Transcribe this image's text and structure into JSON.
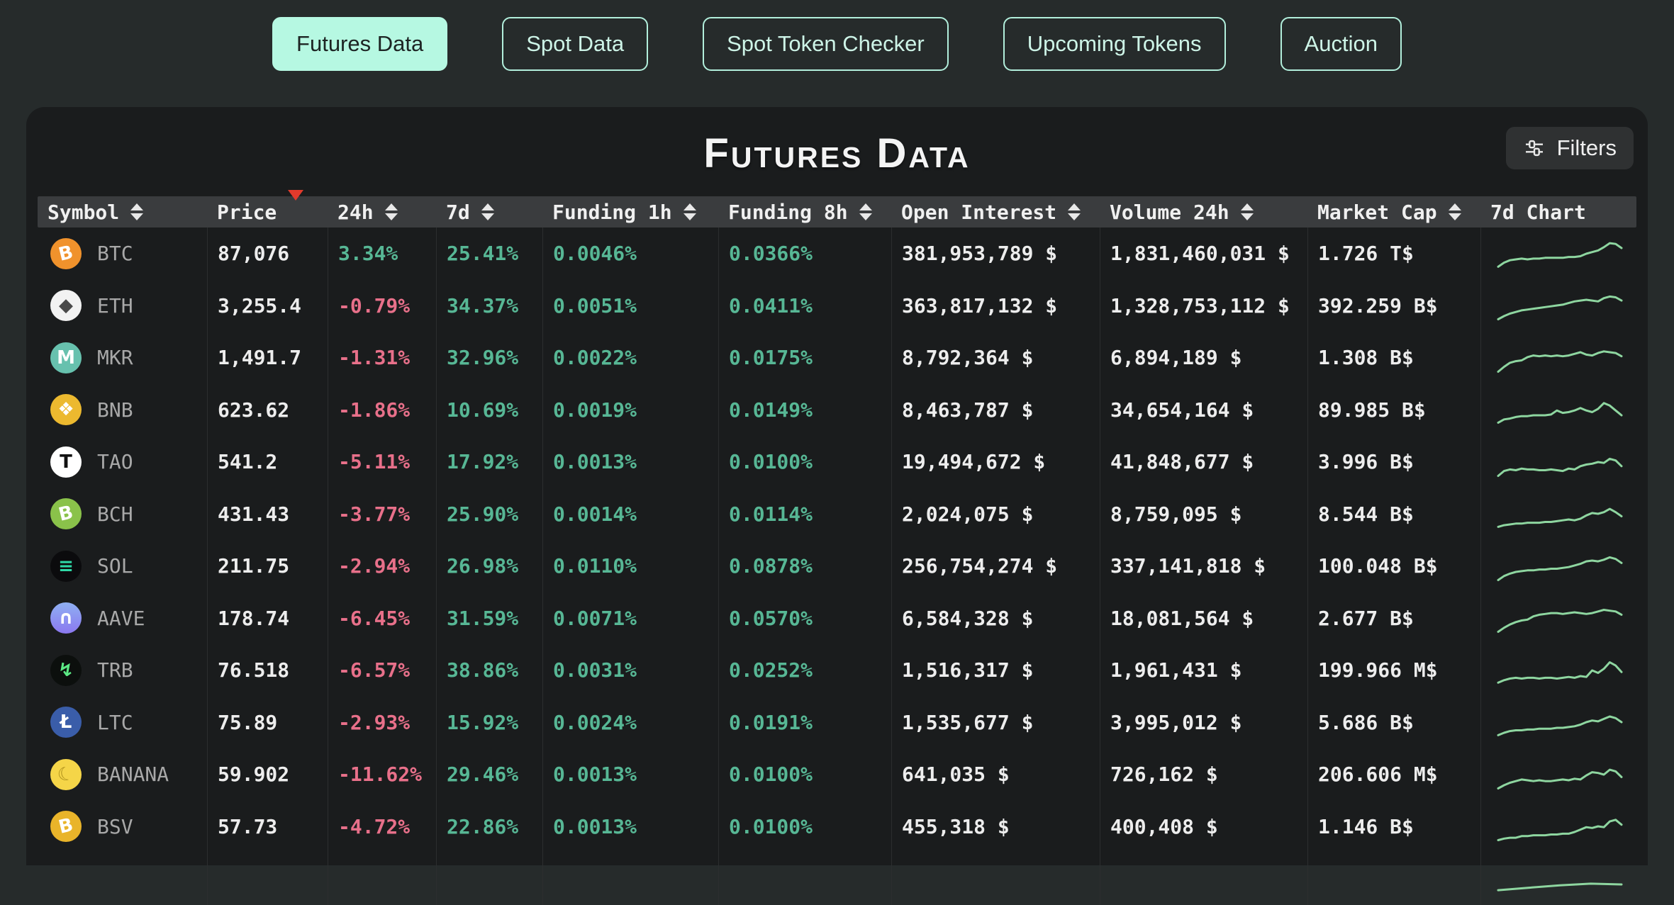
{
  "tabs": [
    {
      "label": "Futures Data",
      "active": true
    },
    {
      "label": "Spot Data",
      "active": false
    },
    {
      "label": "Spot Token Checker",
      "active": false
    },
    {
      "label": "Upcoming Tokens",
      "active": false
    },
    {
      "label": "Auction",
      "active": false
    }
  ],
  "panel": {
    "title": "Futures Data",
    "filters_label": "Filters"
  },
  "colors": {
    "positive": "#57b795",
    "negative": "#e8708a",
    "sparkline": "#8ed6a0",
    "sort_active": "#e23a2c",
    "accent_mint": "#b6f8e2"
  },
  "table": {
    "columns": [
      {
        "label": "Symbol",
        "sort": "both"
      },
      {
        "label": "Price",
        "sort": "desc"
      },
      {
        "label": "24h",
        "sort": "both"
      },
      {
        "label": "7d",
        "sort": "both"
      },
      {
        "label": "Funding 1h",
        "sort": "both"
      },
      {
        "label": "Funding 8h",
        "sort": "both"
      },
      {
        "label": "Open Interest",
        "sort": "both"
      },
      {
        "label": "Volume 24h",
        "sort": "both"
      },
      {
        "label": "Market Cap",
        "sort": "both"
      },
      {
        "label": "7d Chart",
        "sort": "none"
      }
    ],
    "rows": [
      {
        "symbol": "BTC",
        "icon": {
          "glyph": "B",
          "bg": "#f0922c",
          "fg": "#ffffff",
          "tilt": true
        },
        "price": "87,076",
        "change_24h": "3.34%",
        "change_7d": "25.41%",
        "funding_1h": "0.0046%",
        "funding_8h": "0.0366%",
        "open_interest": "381,953,789 $",
        "volume_24h": "1,831,460,031 $",
        "market_cap": "1.726 T$",
        "spark": [
          4,
          9,
          12,
          13,
          14,
          13,
          14,
          14,
          15,
          15,
          15,
          15,
          16,
          16,
          17,
          20,
          22,
          24,
          28,
          33,
          32,
          27
        ]
      },
      {
        "symbol": "ETH",
        "icon": {
          "glyph": "◆",
          "bg": "#f2f2f2",
          "fg": "#4a4a4a",
          "tilt": false
        },
        "price": "3,255.4",
        "change_24h": "-0.79%",
        "change_7d": "34.37%",
        "funding_1h": "0.0051%",
        "funding_8h": "0.0411%",
        "open_interest": "363,817,132 $",
        "volume_24h": "1,328,753,112 $",
        "market_cap": "392.259 B$",
        "spark": [
          3,
          7,
          10,
          12,
          14,
          15,
          16,
          17,
          18,
          19,
          20,
          21,
          23,
          25,
          26,
          27,
          26,
          25,
          29,
          31,
          30,
          26
        ]
      },
      {
        "symbol": "MKR",
        "icon": {
          "glyph": "M",
          "bg": "#67c1ae",
          "fg": "#ffffff",
          "tilt": false
        },
        "price": "1,491.7",
        "change_24h": "-1.31%",
        "change_7d": "32.96%",
        "funding_1h": "0.0022%",
        "funding_8h": "0.0175%",
        "open_interest": "8,792,364 $",
        "volume_24h": "6,894,189 $",
        "market_cap": "1.308 B$",
        "spark": [
          3,
          9,
          14,
          16,
          17,
          21,
          23,
          22,
          23,
          22,
          23,
          22,
          23,
          25,
          27,
          24,
          23,
          26,
          28,
          27,
          26,
          22
        ]
      },
      {
        "symbol": "BNB",
        "icon": {
          "glyph": "❖",
          "bg": "#ecb92f",
          "fg": "#ffffff",
          "tilt": false
        },
        "price": "623.62",
        "change_24h": "-1.86%",
        "change_7d": "10.69%",
        "funding_1h": "0.0019%",
        "funding_8h": "0.0149%",
        "open_interest": "8,463,787 $",
        "volume_24h": "34,654,164 $",
        "market_cap": "89.985 B$",
        "spark": [
          4,
          8,
          9,
          11,
          12,
          12,
          13,
          13,
          13,
          14,
          19,
          16,
          17,
          19,
          22,
          19,
          17,
          21,
          28,
          25,
          19,
          13
        ]
      },
      {
        "symbol": "TAO",
        "icon": {
          "glyph": "T",
          "bg": "#ffffff",
          "fg": "#111111",
          "tilt": false
        },
        "price": "541.2",
        "change_24h": "-5.11%",
        "change_7d": "17.92%",
        "funding_1h": "0.0013%",
        "funding_8h": "0.0100%",
        "open_interest": "19,494,672 $",
        "volume_24h": "41,848,677 $",
        "market_cap": "3.996 B$",
        "spark": [
          3,
          9,
          11,
          10,
          12,
          11,
          11,
          10,
          10,
          11,
          10,
          9,
          12,
          11,
          15,
          17,
          18,
          20,
          19,
          24,
          22,
          15
        ]
      },
      {
        "symbol": "BCH",
        "icon": {
          "glyph": "B",
          "bg": "#8ac24a",
          "fg": "#ffffff",
          "tilt": true
        },
        "price": "431.43",
        "change_24h": "-3.77%",
        "change_7d": "25.90%",
        "funding_1h": "0.0014%",
        "funding_8h": "0.0114%",
        "open_interest": "2,024,075 $",
        "volume_24h": "8,759,095 $",
        "market_cap": "8.544 B$",
        "spark": [
          4,
          6,
          7,
          8,
          8,
          9,
          9,
          9,
          10,
          10,
          11,
          12,
          13,
          12,
          14,
          18,
          21,
          20,
          22,
          26,
          22,
          17
        ]
      },
      {
        "symbol": "SOL",
        "icon": {
          "glyph": "≡",
          "bg": "#0b0b0d",
          "fg": "#2fd8a7",
          "tilt": false
        },
        "price": "211.75",
        "change_24h": "-2.94%",
        "change_7d": "26.98%",
        "funding_1h": "0.0110%",
        "funding_8h": "0.0878%",
        "open_interest": "256,754,274 $",
        "volume_24h": "337,141,818 $",
        "market_cap": "100.048 B$",
        "spark": [
          3,
          8,
          11,
          13,
          14,
          15,
          15,
          16,
          16,
          17,
          17,
          18,
          19,
          21,
          23,
          26,
          27,
          26,
          28,
          31,
          29,
          24
        ]
      },
      {
        "symbol": "AAVE",
        "icon": {
          "glyph": "∩",
          "bg": "linear-gradient(180deg,#8fb0f2,#8b78f0)",
          "fg": "#ffffff",
          "tilt": false
        },
        "price": "178.74",
        "change_24h": "-6.45%",
        "change_7d": "31.59%",
        "funding_1h": "0.0071%",
        "funding_8h": "0.0570%",
        "open_interest": "6,584,328 $",
        "volume_24h": "18,081,564 $",
        "market_cap": "2.677 B$",
        "spark": [
          3,
          8,
          12,
          15,
          17,
          18,
          22,
          24,
          25,
          26,
          26,
          25,
          26,
          27,
          26,
          25,
          26,
          28,
          30,
          29,
          28,
          24
        ]
      },
      {
        "symbol": "TRB",
        "icon": {
          "glyph": "↯",
          "bg": "#0c0f0d",
          "fg": "#5cea85",
          "tilt": false
        },
        "price": "76.518",
        "change_24h": "-6.57%",
        "change_7d": "38.86%",
        "funding_1h": "0.0031%",
        "funding_8h": "0.0252%",
        "open_interest": "1,516,317 $",
        "volume_24h": "1,961,431 $",
        "market_cap": "199.966 M$",
        "spark": [
          5,
          8,
          10,
          11,
          10,
          11,
          11,
          10,
          11,
          11,
          10,
          11,
          12,
          11,
          13,
          12,
          20,
          17,
          22,
          30,
          26,
          18
        ]
      },
      {
        "symbol": "LTC",
        "icon": {
          "glyph": "Ł",
          "bg": "#3a5da9",
          "fg": "#ffffff",
          "tilt": false
        },
        "price": "75.89",
        "change_24h": "-2.93%",
        "change_7d": "15.92%",
        "funding_1h": "0.0024%",
        "funding_8h": "0.0191%",
        "open_interest": "1,535,677 $",
        "volume_24h": "3,995,012 $",
        "market_cap": "5.686 B$",
        "spark": [
          4,
          7,
          9,
          10,
          10,
          11,
          11,
          12,
          12,
          12,
          13,
          13,
          14,
          15,
          17,
          20,
          22,
          21,
          24,
          27,
          25,
          20
        ]
      },
      {
        "symbol": "BANANA",
        "icon": {
          "glyph": "☾",
          "bg": "#f5d548",
          "fg": "#b0921d",
          "tilt": true
        },
        "price": "59.902",
        "change_24h": "-11.62%",
        "change_7d": "29.46%",
        "funding_1h": "0.0013%",
        "funding_8h": "0.0100%",
        "open_interest": "641,035 $",
        "volume_24h": "726,162 $",
        "market_cap": "206.606 M$",
        "spark": [
          3,
          7,
          10,
          12,
          14,
          13,
          12,
          13,
          12,
          12,
          13,
          14,
          13,
          15,
          14,
          19,
          23,
          22,
          20,
          26,
          24,
          17
        ]
      },
      {
        "symbol": "BSV",
        "icon": {
          "glyph": "B",
          "bg": "#e9b42a",
          "fg": "#ffffff",
          "tilt": true
        },
        "price": "57.73",
        "change_24h": "-4.72%",
        "change_7d": "22.86%",
        "funding_1h": "0.0013%",
        "funding_8h": "0.0100%",
        "open_interest": "455,318 $",
        "volume_24h": "400,408 $",
        "market_cap": "1.146 B$",
        "spark": [
          3,
          5,
          6,
          6,
          8,
          8,
          9,
          9,
          9,
          10,
          10,
          11,
          11,
          13,
          16,
          19,
          18,
          20,
          19,
          26,
          28,
          22
        ]
      }
    ],
    "partial_row_spark": [
      6,
      9,
      12,
      14,
      13
    ]
  }
}
